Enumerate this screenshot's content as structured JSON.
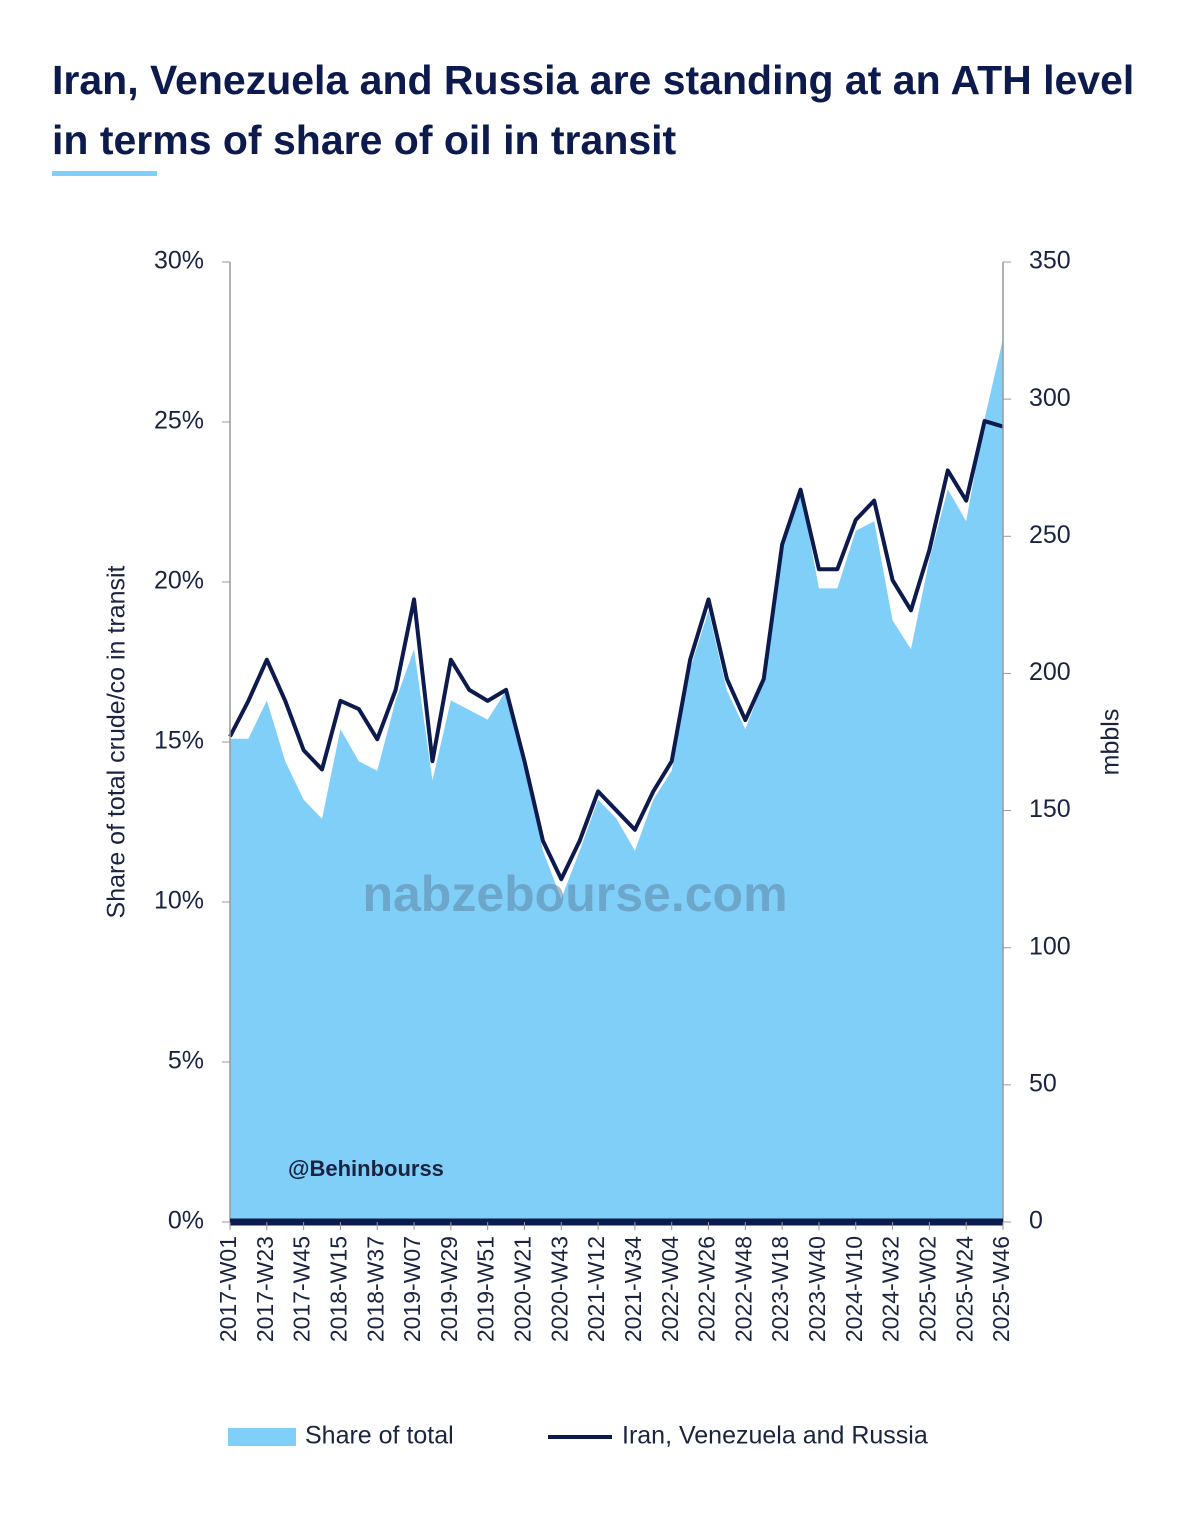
{
  "chart_data": {
    "type": "combo",
    "title": "Iran, Venezuela and Russia are standing at an ATH level in terms of share of oil in transit",
    "ylabel": "Share of total crude/co in transit",
    "y2label": "mbbls",
    "annotations": [
      "@Behinbourss",
      "nabzebourse.com"
    ],
    "categories": [
      "2017-W01",
      null,
      "2017-W23",
      null,
      "2017-W45",
      null,
      "2018-W15",
      null,
      "2018-W37",
      null,
      "2019-W07",
      null,
      "2019-W29",
      null,
      "2019-W51",
      null,
      "2020-W21",
      null,
      "2020-W43",
      null,
      "2021-W12",
      null,
      "2021-W34",
      null,
      "2022-W04",
      null,
      "2022-W26",
      null,
      "2022-W48",
      null,
      "2023-W18",
      null,
      "2023-W40",
      null,
      "2024-W10",
      null,
      "2024-W32",
      null,
      "2025-W02",
      null,
      "2025-W24",
      null,
      "2025-W46"
    ],
    "series": [
      {
        "name": "Share of total",
        "type": "area",
        "color": "#80cff9",
        "axis": "y",
        "values": [
          15.1,
          15.1,
          16.3,
          14.4,
          13.2,
          12.6,
          15.4,
          14.4,
          14.1,
          16.3,
          17.9,
          13.8,
          16.3,
          16.0,
          15.7,
          16.6,
          14.4,
          11.6,
          10.1,
          11.6,
          13.2,
          12.6,
          11.6,
          13.2,
          14.1,
          17.3,
          19.1,
          16.6,
          15.4,
          16.9,
          21.3,
          22.9,
          19.8,
          19.8,
          21.6,
          21.9,
          18.8,
          17.9,
          20.7,
          22.9,
          21.9,
          25.1,
          27.6
        ]
      },
      {
        "name": "Iran, Venezuela and Russia",
        "type": "line",
        "color": "#0d1a4d",
        "axis": "y2",
        "values": [
          177,
          190,
          205,
          190,
          172,
          165,
          190,
          187,
          176,
          194,
          227,
          168,
          205,
          194,
          190,
          194,
          168,
          139,
          125,
          139,
          157,
          150,
          143,
          157,
          168,
          205,
          227,
          198,
          183,
          198,
          247,
          267,
          238,
          238,
          256,
          263,
          234,
          223,
          245,
          274,
          263,
          292,
          290
        ]
      }
    ],
    "ylim": [
      0,
      30
    ],
    "yticks": [
      {
        "value": 0,
        "label": "0%"
      },
      {
        "value": 5,
        "label": "5%"
      },
      {
        "value": 10,
        "label": "10%"
      },
      {
        "value": 15,
        "label": "15%"
      },
      {
        "value": 20,
        "label": "20%"
      },
      {
        "value": 25,
        "label": "25%"
      },
      {
        "value": 30,
        "label": "30%"
      }
    ],
    "y2lim": [
      0,
      350
    ],
    "y2ticks": [
      0,
      50,
      100,
      150,
      200,
      250,
      300,
      350
    ]
  }
}
